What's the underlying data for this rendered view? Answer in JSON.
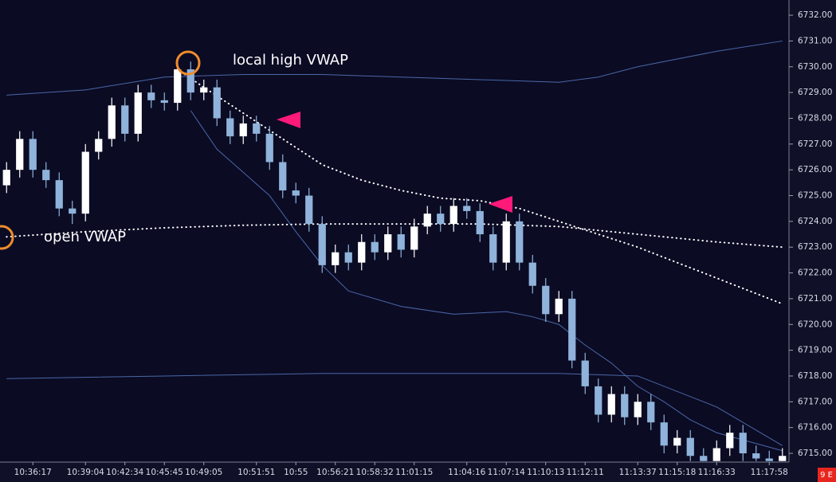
{
  "chart_data": {
    "type": "candlestick",
    "categories": [
      null,
      null,
      "10:36:17",
      null,
      null,
      null,
      "10:39:04",
      null,
      null,
      "10:42:34",
      null,
      null,
      "10:45:45",
      null,
      null,
      "10:49:05",
      null,
      null,
      null,
      "10:51:51",
      null,
      null,
      "10:55",
      null,
      null,
      "10:56:21",
      null,
      null,
      "10:58:32",
      null,
      null,
      "11:01:15",
      null,
      null,
      null,
      "11:04:16",
      null,
      null,
      "11:07:14",
      null,
      null,
      "11:10:13",
      null,
      null,
      "11:12:11",
      null,
      null,
      null,
      "11:13:37",
      null,
      null,
      "11:15:18",
      null,
      null,
      "11:16:33",
      null,
      null,
      null,
      "11:17:58",
      null
    ],
    "open": [
      6725.4,
      6726.0,
      6727.2,
      6726.0,
      6725.6,
      6724.5,
      6724.3,
      6726.7,
      6727.2,
      6728.5,
      6727.4,
      6729.0,
      6728.7,
      6728.6,
      6729.9,
      6729.0,
      6729.2,
      6728.0,
      6727.3,
      6727.8,
      6727.4,
      6726.3,
      6725.2,
      6725.0,
      6723.9,
      6722.3,
      6722.8,
      6722.4,
      6723.2,
      6722.8,
      6723.5,
      6722.9,
      6723.8,
      6724.3,
      6723.9,
      6724.6,
      6724.4,
      6723.5,
      6722.4,
      6724.0,
      6722.4,
      6721.5,
      6720.4,
      6721.0,
      6718.6,
      6717.6,
      6716.5,
      6717.3,
      6716.4,
      6717.0,
      6716.2,
      6715.3,
      6715.6,
      6714.9,
      6714.7,
      6715.2,
      6715.8,
      6715.0,
      6714.8,
      6714.7
    ],
    "high": [
      6726.3,
      6727.5,
      6727.5,
      6726.3,
      6725.9,
      6724.8,
      6727.0,
      6727.5,
      6728.8,
      6728.8,
      6729.3,
      6729.3,
      6729.0,
      6730.2,
      6730.2,
      6729.5,
      6729.5,
      6728.3,
      6728.1,
      6728.1,
      6727.7,
      6726.6,
      6725.5,
      6725.3,
      6724.2,
      6723.1,
      6723.1,
      6723.5,
      6723.5,
      6723.8,
      6723.8,
      6724.1,
      6724.6,
      6724.6,
      6724.9,
      6724.9,
      6724.7,
      6723.8,
      6724.3,
      6724.3,
      6722.7,
      6721.8,
      6721.3,
      6721.3,
      6718.9,
      6717.9,
      6717.6,
      6717.6,
      6717.3,
      6717.3,
      6716.5,
      6715.9,
      6715.9,
      6715.2,
      6715.5,
      6716.1,
      6716.1,
      6715.3,
      6715.1,
      6715.2
    ],
    "low": [
      6725.1,
      6725.7,
      6725.7,
      6725.3,
      6724.2,
      6723.9,
      6724.0,
      6726.4,
      6726.9,
      6727.1,
      6727.1,
      6728.4,
      6728.3,
      6728.3,
      6728.7,
      6728.7,
      6727.7,
      6727.0,
      6727.0,
      6727.1,
      6726.0,
      6724.9,
      6724.7,
      6723.6,
      6722.0,
      6722.0,
      6722.1,
      6722.1,
      6722.5,
      6722.5,
      6722.6,
      6722.6,
      6723.5,
      6723.6,
      6723.6,
      6724.1,
      6723.2,
      6722.1,
      6722.1,
      6722.1,
      6721.2,
      6720.1,
      6720.1,
      6718.3,
      6717.3,
      6716.2,
      6716.2,
      6716.1,
      6716.1,
      6715.9,
      6715.0,
      6715.0,
      6714.7,
      6714.7,
      6714.7,
      6714.9,
      6714.7,
      6714.7,
      6714.7,
      6714.7
    ],
    "close": [
      6726.0,
      6727.2,
      6726.0,
      6725.6,
      6724.5,
      6724.3,
      6726.7,
      6727.2,
      6728.5,
      6727.4,
      6729.0,
      6728.7,
      6728.6,
      6729.9,
      6729.0,
      6729.2,
      6728.0,
      6727.3,
      6727.8,
      6727.4,
      6726.3,
      6725.2,
      6725.0,
      6723.9,
      6722.3,
      6722.8,
      6722.4,
      6723.2,
      6722.8,
      6723.5,
      6722.9,
      6723.8,
      6724.3,
      6723.9,
      6724.6,
      6724.4,
      6723.5,
      6722.4,
      6724.0,
      6722.4,
      6721.5,
      6720.4,
      6721.0,
      6718.6,
      6717.6,
      6716.5,
      6717.3,
      6716.4,
      6717.0,
      6716.2,
      6715.3,
      6715.6,
      6714.9,
      6714.7,
      6715.2,
      6715.8,
      6715.0,
      6714.8,
      6714.7,
      6714.9
    ],
    "up_color": "#ffffff",
    "down_color": "#8fb3da",
    "series": [
      {
        "color": "#4a68a6",
        "style": "solid",
        "x": [
          0,
          6,
          12,
          18,
          24,
          30,
          36,
          42,
          45,
          48,
          54,
          59
        ],
        "values": [
          6728.9,
          6729.1,
          6729.6,
          6729.7,
          6729.7,
          6729.6,
          6729.5,
          6729.4,
          6729.6,
          6730.0,
          6730.6,
          6731.0
        ]
      },
      {
        "color": "#4a68a6",
        "style": "solid",
        "x": [
          0,
          12,
          24,
          36,
          42,
          48,
          54,
          59
        ],
        "values": [
          6717.9,
          6718.0,
          6718.1,
          6718.1,
          6718.1,
          6718.0,
          6716.8,
          6715.3
        ]
      },
      {
        "color": "#4a68a6",
        "style": "solid",
        "x": [
          14,
          16,
          18,
          20,
          22,
          24,
          26,
          30,
          34,
          38,
          40,
          42,
          44,
          46,
          48,
          50,
          52,
          54,
          59
        ],
        "values": [
          6728.3,
          6726.8,
          6725.9,
          6725.0,
          6723.6,
          6722.3,
          6721.3,
          6720.7,
          6720.4,
          6720.5,
          6720.3,
          6720.0,
          6719.2,
          6718.5,
          6717.6,
          6717.0,
          6716.3,
          6715.8,
          6715.1
        ]
      },
      {
        "color": "#ffffff",
        "style": "dotted",
        "x": [
          0,
          6,
          12,
          18,
          24,
          30,
          36,
          42,
          48,
          54,
          59
        ],
        "values": [
          6723.4,
          6723.6,
          6723.75,
          6723.85,
          6723.9,
          6723.9,
          6723.9,
          6723.8,
          6723.5,
          6723.2,
          6723.0
        ]
      },
      {
        "color": "#ffffff",
        "style": "dotted",
        "x": [
          13,
          15,
          18,
          21,
          24,
          27,
          30,
          33,
          36,
          39,
          42,
          45,
          48,
          51,
          54,
          57,
          59
        ],
        "values": [
          6729.9,
          6729.2,
          6728.2,
          6727.2,
          6726.2,
          6725.6,
          6725.2,
          6724.9,
          6724.8,
          6724.5,
          6724.0,
          6723.5,
          6723.0,
          6722.4,
          6721.8,
          6721.2,
          6720.8
        ]
      }
    ],
    "ylim": [
      6714.66,
      6732.59
    ],
    "yticks": [
      {
        "value": 6715,
        "label": "6715.00"
      },
      {
        "value": 6716,
        "label": "6716.00"
      },
      {
        "value": 6717,
        "label": "6717.00"
      },
      {
        "value": 6718,
        "label": "6718.00"
      },
      {
        "value": 6719,
        "label": "6719.00"
      },
      {
        "value": 6720,
        "label": "6720.00"
      },
      {
        "value": 6721,
        "label": "6721.00"
      },
      {
        "value": 6722,
        "label": "6722.00"
      },
      {
        "value": 6723,
        "label": "6723.00"
      },
      {
        "value": 6724,
        "label": "6724.00"
      },
      {
        "value": 6725,
        "label": "6725.00"
      },
      {
        "value": 6726,
        "label": "6726.00"
      },
      {
        "value": 6727,
        "label": "6727.00"
      },
      {
        "value": 6728,
        "label": "6728.00"
      },
      {
        "value": 6729,
        "label": "6729.00"
      },
      {
        "value": 6730,
        "label": "6730.00"
      },
      {
        "value": 6731,
        "label": "6731.00"
      },
      {
        "value": 6732,
        "label": "6732.00"
      }
    ],
    "annotations": [
      "local high VWAP",
      "open VWAP"
    ],
    "badge": "9 E"
  }
}
